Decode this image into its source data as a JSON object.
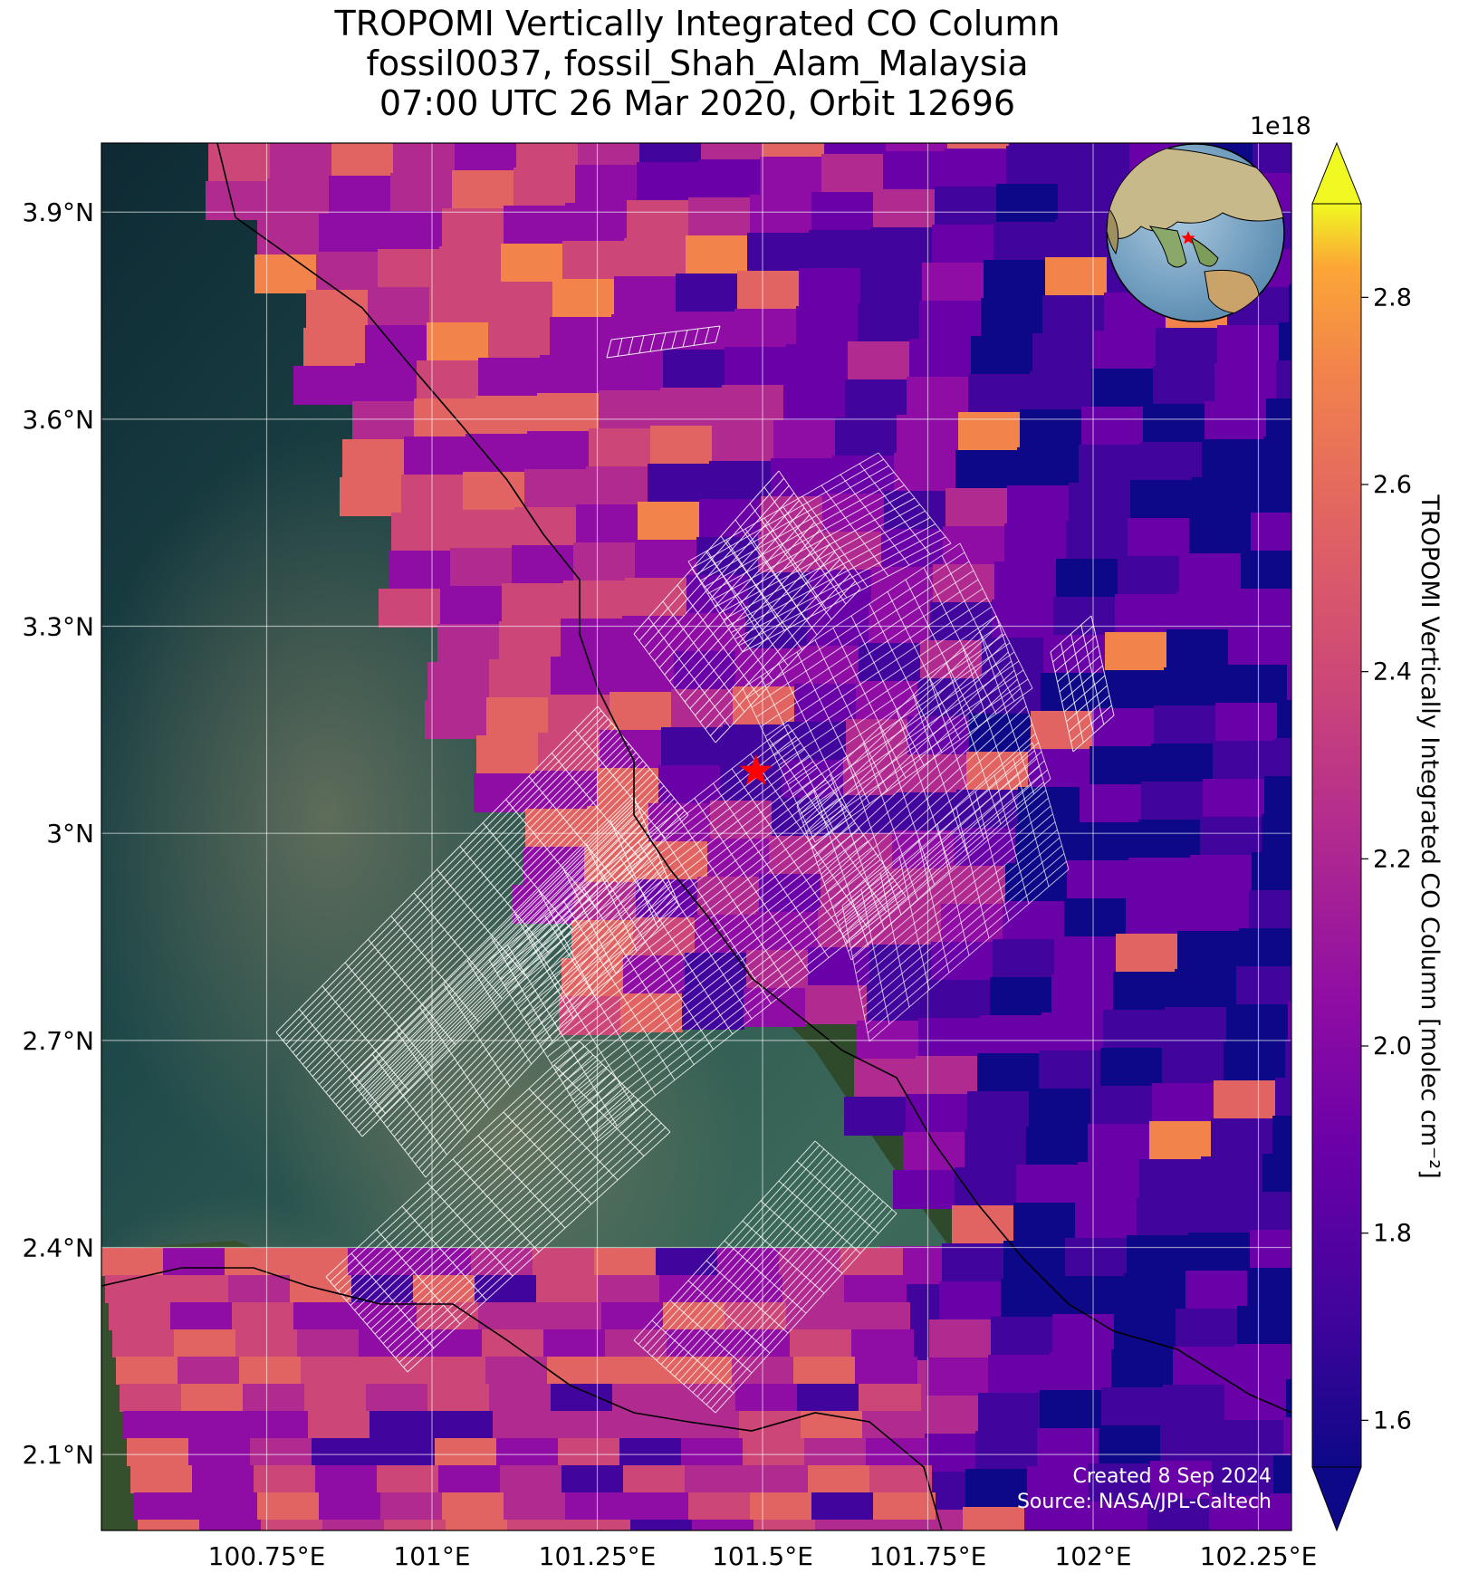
{
  "title": {
    "line1": "TROPOMI Vertically Integrated CO Column",
    "line2": "fossil0037, fossil_Shah_Alam_Malaysia",
    "line3": "07:00 UTC 26 Mar 2020, Orbit 12696"
  },
  "axes": {
    "x_ticks": [
      "100.75°E",
      "101°E",
      "101.25°E",
      "101.5°E",
      "101.75°E",
      "102°E",
      "102.25°E"
    ],
    "y_ticks": [
      "3.9°N",
      "3.6°N",
      "3.3°N",
      "3°N",
      "2.7°N",
      "2.4°N",
      "2.1°N"
    ]
  },
  "colorbar": {
    "label": "TROPOMI Vertically Integrated CO Column [molec cm⁻²]",
    "exponent": "1e18",
    "ticks": [
      "1.6",
      "1.8",
      "2.0",
      "2.2",
      "2.4",
      "2.6",
      "2.8"
    ],
    "colormap": "plasma",
    "extend": "both"
  },
  "credits": {
    "created": "Created 8 Sep 2024",
    "source": "Source: NASA/JPL-Caltech"
  },
  "chart_data": {
    "type": "heatmap",
    "projection": "lon-lat",
    "xlim": [
      100.5,
      102.3
    ],
    "ylim": [
      1.99,
      4.0
    ],
    "x_tick_values": [
      100.75,
      101.0,
      101.25,
      101.5,
      101.75,
      102.0,
      102.25
    ],
    "y_tick_values": [
      3.9,
      3.6,
      3.3,
      3.0,
      2.7,
      2.4,
      2.1
    ],
    "grid": true,
    "colorbar_range": [
      1.55,
      2.9
    ],
    "site_marker": {
      "lon": 101.49,
      "lat": 3.09,
      "symbol": "red-star"
    },
    "inset_globe": {
      "position": "top-right",
      "marker": "red-star"
    }
  }
}
